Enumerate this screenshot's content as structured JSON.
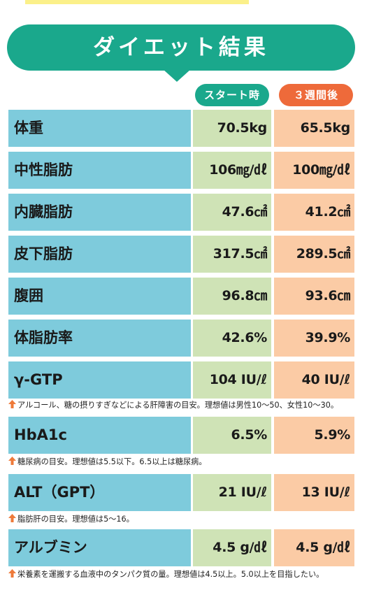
{
  "colors": {
    "banner": "#1aa88c",
    "start_pill": "#1aa88c",
    "after_pill": "#ee6a3a",
    "label_cell": "#7ecbdc",
    "start_cell": "#cfe3b6",
    "after_cell": "#fbcba5",
    "note_arrow": "#ee7a3a"
  },
  "title": "ダイエット結果",
  "columns": {
    "start": "スタート時",
    "after": "３週間後"
  },
  "rows": [
    {
      "label": "体重",
      "start": "70.5kg",
      "after": "65.5kg"
    },
    {
      "label": "中性脂肪",
      "start": "106㎎/㎗",
      "after": "100㎎/㎗"
    },
    {
      "label": "内臓脂肪",
      "start": "47.6㎠",
      "after": "41.2㎠"
    },
    {
      "label": "皮下脂肪",
      "start": "317.5㎠",
      "after": "289.5㎠"
    },
    {
      "label": "腹囲",
      "start": "96.8㎝",
      "after": "93.6㎝"
    },
    {
      "label": "体脂肪率",
      "start": "42.6%",
      "after": "39.9%"
    },
    {
      "label": "γ-GTP",
      "start": "104 IU/ℓ",
      "after": "40 IU/ℓ"
    },
    {
      "label": "HbA1c",
      "start": "6.5%",
      "after": "5.9%"
    },
    {
      "label": "ALT（GPT）",
      "start": "21 IU/ℓ",
      "after": "13 IU/ℓ"
    },
    {
      "label": "アルブミン",
      "start": "4.5 g/㎗",
      "after": "4.5 g/㎗"
    }
  ],
  "notes": [
    "アルコール、糖の摂りすぎなどによる肝障害の目安。理想値は男性10〜50、女性10〜30。",
    "糖尿病の目安。理想値は5.5以下。6.5以上は糖尿病。",
    "脂肪肝の目安。理想値は5〜16。",
    "栄養素を運搬する血液中のタンパク質の量。理想値は4.5以上。5.0以上を目指したい。"
  ]
}
